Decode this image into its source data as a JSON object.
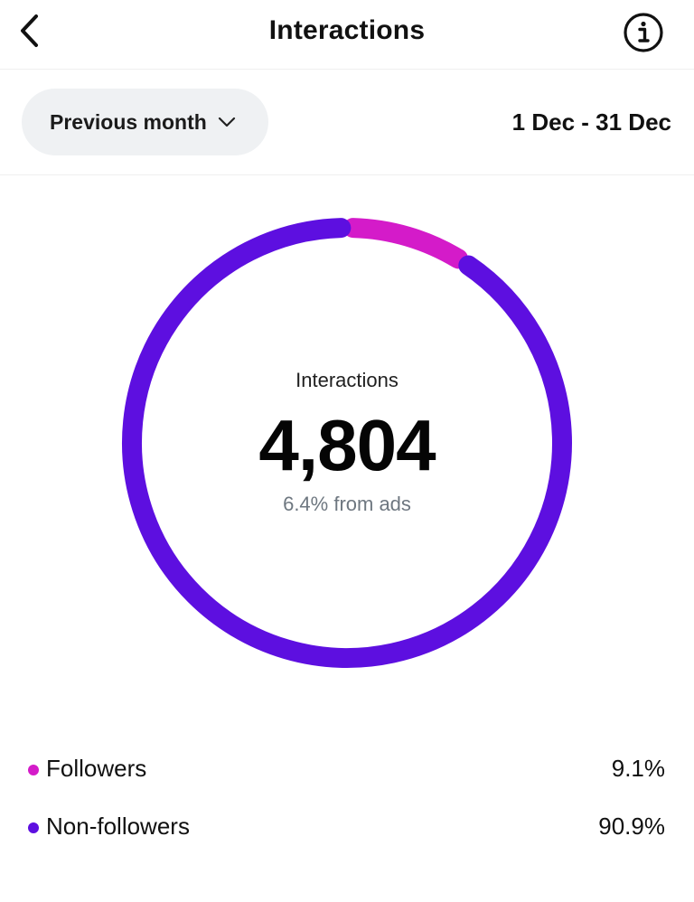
{
  "header": {
    "title": "Interactions",
    "back_icon": "chevron-left-icon",
    "info_icon": "info-circle-icon"
  },
  "filter": {
    "period_label": "Previous month",
    "period_icon": "chevron-down-icon",
    "date_range": "1 Dec - 31 Dec"
  },
  "summary": {
    "label": "Interactions",
    "value": "4,804",
    "sub": "6.4% from ads"
  },
  "colors": {
    "followers": "#d41bc9",
    "non_followers": "#5d0fe0"
  },
  "chart_data": {
    "type": "pie",
    "style": "donut",
    "categories": [
      "Followers",
      "Non-followers"
    ],
    "values": [
      9.1,
      90.9
    ],
    "unit": "%",
    "colors": [
      "#d41bc9",
      "#5d0fe0"
    ]
  },
  "legend": [
    {
      "label": "Followers",
      "value": "9.1%"
    },
    {
      "label": "Non-followers",
      "value": "90.9%"
    }
  ]
}
